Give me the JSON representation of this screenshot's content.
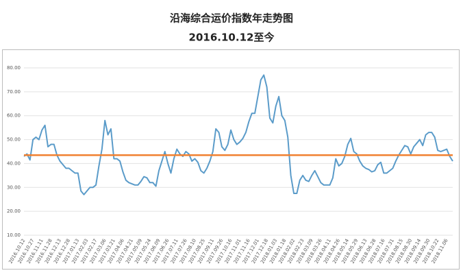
{
  "chart_data": {
    "type": "line",
    "title": "沿海综合运价指数年走势图",
    "subtitle": "2016.10.12至今",
    "categories": [
      "2016.10.12",
      null,
      null,
      "2016.10.27",
      null,
      null,
      "2016.11.11",
      null,
      null,
      "2016.11.28",
      null,
      null,
      "2016.12.13",
      null,
      null,
      "2016.12.28",
      null,
      null,
      "2017.01.13",
      null,
      null,
      "2017.02.03",
      null,
      null,
      "2017.02.17",
      null,
      null,
      "2017.03.06",
      null,
      null,
      "2017.03.21",
      null,
      null,
      "2017.04.06",
      null,
      null,
      "2017.04.21",
      null,
      null,
      "2017.05.09",
      null,
      null,
      "2017.05.24",
      null,
      null,
      "2017.06.09",
      null,
      null,
      "2017.06.26",
      null,
      null,
      "2017.07.11",
      null,
      null,
      "2017.07.26",
      null,
      null,
      "2017.08.10",
      null,
      null,
      "2017.08.25",
      null,
      null,
      "2017.09.11",
      null,
      null,
      "2017.09.26",
      null,
      null,
      "2017.10.16",
      null,
      null,
      "2017.11.01",
      null,
      null,
      "2017.11.16",
      null,
      null,
      "2017.12.01",
      null,
      null,
      "2017.12.18",
      null,
      null,
      "2018.01.03",
      null,
      null,
      "2018.01.18",
      null,
      null,
      "2018.02.02",
      null,
      null,
      "2018.02.23",
      null,
      null,
      "2018.03.09",
      null,
      null,
      "2018.03.26",
      null,
      null,
      "2018.04.11",
      null,
      null,
      "2018.04.26",
      null,
      null,
      "2018.05.14",
      null,
      null,
      "2018.05.29",
      null,
      null,
      "2018.06.13",
      null,
      null,
      "2018.06.28",
      null,
      null,
      "2018.07.16",
      null,
      null,
      "2018.07.31",
      null,
      null,
      "2018.08.15",
      null,
      null,
      "2018.08.30",
      null,
      null,
      "2018.09.14",
      null,
      null,
      "2018.09.30",
      null,
      null,
      "2018.10.22",
      null,
      null,
      "2018.11.06",
      null,
      null
    ],
    "series": [
      {
        "color": "#5a9bc9",
        "values": [
          43,
          44,
          41.5,
          50,
          51,
          50,
          54,
          56,
          47,
          48,
          48,
          43.5,
          41,
          39.5,
          38,
          38,
          37,
          36,
          36,
          28.5,
          27,
          28.5,
          30,
          30,
          31,
          39,
          46,
          58,
          52,
          54.5,
          42,
          42,
          41,
          36.5,
          33,
          32,
          31.5,
          31,
          31,
          32.5,
          34.5,
          34,
          32,
          32,
          30.5,
          37,
          41,
          45,
          40,
          36,
          42,
          46,
          44,
          43,
          45,
          44,
          41,
          42,
          40.5,
          37,
          36,
          38,
          41,
          45,
          54.5,
          53,
          47,
          45.5,
          48,
          54,
          50,
          48,
          49,
          50.5,
          53,
          57.5,
          61,
          61,
          68,
          75,
          77,
          72,
          59,
          57,
          64,
          68,
          60,
          58,
          51,
          35,
          27.5,
          27.5,
          33,
          35,
          33,
          32.5,
          35,
          37,
          34.5,
          32,
          31,
          31,
          31,
          34,
          42,
          39,
          40,
          43,
          48,
          50.5,
          45,
          44,
          41,
          39,
          38,
          37.5,
          36.5,
          37,
          39.5,
          40.5,
          36,
          36,
          37,
          38,
          41,
          43.5,
          45.5,
          47.5,
          47,
          44,
          47,
          48.5,
          50,
          47.5,
          52,
          53,
          53,
          51,
          45.5,
          45,
          45.5,
          46,
          43,
          41
        ]
      }
    ],
    "reference_line": {
      "value": 43.5,
      "color": "#f08030"
    },
    "ylim": [
      10,
      80
    ],
    "yticks": [
      {
        "value": 10,
        "label": "10.00"
      },
      {
        "value": 20,
        "label": "20.00"
      },
      {
        "value": 30,
        "label": "30.00"
      },
      {
        "value": 40,
        "label": "40.00"
      },
      {
        "value": 50,
        "label": "50.00"
      },
      {
        "value": 60,
        "label": "60.00"
      },
      {
        "value": 70,
        "label": "70.00"
      },
      {
        "value": 80,
        "label": "80.00"
      }
    ],
    "grid": true
  }
}
